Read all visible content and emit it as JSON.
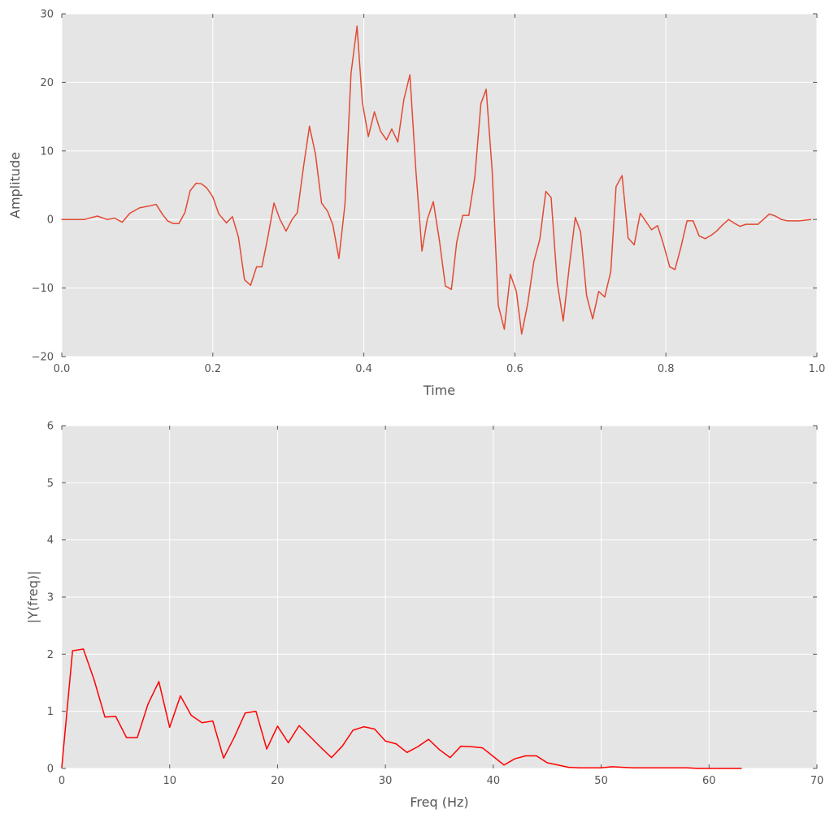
{
  "chart_data": [
    {
      "type": "line",
      "title": "",
      "xlabel": "Time",
      "ylabel": "Amplitude",
      "xlim": [
        0.0,
        1.0
      ],
      "ylim": [
        -20,
        30
      ],
      "xticks": [
        0.0,
        0.2,
        0.4,
        0.6,
        0.8,
        1.0
      ],
      "xtick_labels": [
        "0.0",
        "0.2",
        "0.4",
        "0.6",
        "0.8",
        "1.0"
      ],
      "yticks": [
        -20,
        -10,
        0,
        10,
        20,
        30
      ],
      "ytick_labels": [
        "−20",
        "−10",
        "0",
        "10",
        "20",
        "30"
      ],
      "grid": true,
      "background": "#e5e5e5",
      "series": [
        {
          "color": "#e24a33",
          "x": [
            0.0,
            0.03,
            0.047,
            0.06,
            0.07,
            0.08,
            0.09,
            0.103,
            0.117,
            0.125,
            0.133,
            0.14,
            0.148,
            0.155,
            0.163,
            0.17,
            0.178,
            0.185,
            0.192,
            0.2,
            0.208,
            0.218,
            0.226,
            0.234,
            0.242,
            0.25,
            0.258,
            0.265,
            0.273,
            0.281,
            0.289,
            0.297,
            0.305,
            0.312,
            0.32,
            0.328,
            0.336,
            0.344,
            0.352,
            0.359,
            0.367,
            0.375,
            0.383,
            0.391,
            0.398,
            0.406,
            0.414,
            0.422,
            0.43,
            0.437,
            0.445,
            0.453,
            0.461,
            0.469,
            0.477,
            0.484,
            0.492,
            0.5,
            0.508,
            0.516,
            0.523,
            0.531,
            0.539,
            0.547,
            0.555,
            0.562,
            0.57,
            0.578,
            0.586,
            0.594,
            0.602,
            0.609,
            0.617,
            0.625,
            0.633,
            0.641,
            0.648,
            0.656,
            0.664,
            0.672,
            0.68,
            0.687,
            0.695,
            0.703,
            0.711,
            0.719,
            0.727,
            0.734,
            0.742,
            0.75,
            0.758,
            0.766,
            0.773,
            0.781,
            0.789,
            0.797,
            0.805,
            0.812,
            0.82,
            0.828,
            0.836,
            0.844,
            0.852,
            0.86,
            0.867,
            0.875,
            0.883,
            0.89,
            0.898,
            0.906,
            0.914,
            0.922,
            0.93,
            0.937,
            0.945,
            0.953,
            0.961,
            0.969,
            0.977,
            0.992
          ],
          "y": [
            0.0,
            0.0,
            0.5,
            0.0,
            0.2,
            -0.4,
            0.9,
            1.7,
            2.0,
            2.2,
            0.8,
            -0.2,
            -0.6,
            -0.6,
            1.0,
            4.2,
            5.3,
            5.2,
            4.6,
            3.3,
            0.8,
            -0.5,
            0.4,
            -2.6,
            -8.8,
            -9.6,
            -6.9,
            -6.9,
            -2.5,
            2.4,
            0.0,
            -1.7,
            0.0,
            1.0,
            7.6,
            13.6,
            9.5,
            2.4,
            1.2,
            -0.8,
            -5.7,
            2.2,
            21.3,
            28.2,
            17.1,
            12.1,
            15.7,
            12.9,
            11.6,
            13.2,
            11.3,
            17.5,
            21.1,
            7.0,
            -4.6,
            0.0,
            2.6,
            -3.0,
            -9.7,
            -10.2,
            -3.3,
            0.6,
            0.6,
            6.2,
            16.9,
            19.0,
            7.0,
            -12.5,
            -16.0,
            -8.0,
            -10.5,
            -16.7,
            -12.3,
            -6.2,
            -2.9,
            4.1,
            3.2,
            -9.1,
            -14.8,
            -6.9,
            0.3,
            -1.8,
            -11.1,
            -14.5,
            -10.5,
            -11.3,
            -7.6,
            4.8,
            6.4,
            -2.7,
            -3.7,
            0.9,
            -0.2,
            -1.5,
            -0.9,
            -3.7,
            -6.9,
            -7.3,
            -4.0,
            -0.2,
            -0.2,
            -2.4,
            -2.8,
            -2.3,
            -1.7,
            -0.8,
            0.0,
            -0.5,
            -1.0,
            -0.7,
            -0.7,
            -0.7,
            0.1,
            0.8,
            0.5,
            0.0,
            -0.2,
            -0.2,
            -0.2,
            0.0
          ]
        }
      ]
    },
    {
      "type": "line",
      "title": "",
      "xlabel": "Freq (Hz)",
      "ylabel": "|Y(freq)|",
      "xlim": [
        0,
        70
      ],
      "ylim": [
        0,
        6
      ],
      "xticks": [
        0,
        10,
        20,
        30,
        40,
        50,
        60,
        70
      ],
      "xtick_labels": [
        "0",
        "10",
        "20",
        "30",
        "40",
        "50",
        "60",
        "70"
      ],
      "yticks": [
        0,
        1,
        2,
        3,
        4,
        5,
        6
      ],
      "ytick_labels": [
        "0",
        "1",
        "2",
        "3",
        "4",
        "5",
        "6"
      ],
      "grid": true,
      "background": "#e5e5e5",
      "series": [
        {
          "color": "#ff0000",
          "x": [
            0,
            1,
            2,
            3,
            4,
            5,
            6,
            7,
            8,
            9,
            10,
            11,
            12,
            13,
            14,
            15,
            16,
            17,
            18,
            19,
            20,
            21,
            22,
            23,
            24,
            25,
            26,
            27,
            28,
            29,
            30,
            31,
            32,
            33,
            34,
            35,
            36,
            37,
            38,
            39,
            40,
            41,
            42,
            43,
            44,
            45,
            46,
            47,
            48,
            49,
            50,
            51,
            52,
            53,
            54,
            55,
            56,
            57,
            58,
            59,
            60,
            61,
            62,
            63
          ],
          "y": [
            0.02,
            2.06,
            2.09,
            1.55,
            0.9,
            0.91,
            0.54,
            0.54,
            1.13,
            1.52,
            0.72,
            1.27,
            0.93,
            0.8,
            0.83,
            0.18,
            0.55,
            0.97,
            1.0,
            0.34,
            0.74,
            0.45,
            0.75,
            0.56,
            0.37,
            0.19,
            0.39,
            0.67,
            0.73,
            0.69,
            0.48,
            0.43,
            0.28,
            0.38,
            0.51,
            0.33,
            0.19,
            0.39,
            0.38,
            0.36,
            0.21,
            0.06,
            0.17,
            0.22,
            0.22,
            0.1,
            0.06,
            0.02,
            0.01,
            0.01,
            0.01,
            0.03,
            0.02,
            0.01,
            0.01,
            0.01,
            0.01,
            0.01,
            0.01,
            0.0,
            0.0,
            0.0,
            0.0,
            0.0
          ]
        }
      ]
    }
  ]
}
